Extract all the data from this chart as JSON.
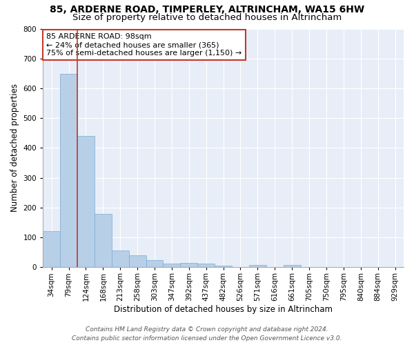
{
  "title_line1": "85, ARDERNE ROAD, TIMPERLEY, ALTRINCHAM, WA15 6HW",
  "title_line2": "Size of property relative to detached houses in Altrincham",
  "xlabel": "Distribution of detached houses by size in Altrincham",
  "ylabel": "Number of detached properties",
  "categories": [
    "34sqm",
    "79sqm",
    "124sqm",
    "168sqm",
    "213sqm",
    "258sqm",
    "303sqm",
    "347sqm",
    "392sqm",
    "437sqm",
    "482sqm",
    "526sqm",
    "571sqm",
    "616sqm",
    "661sqm",
    "705sqm",
    "750sqm",
    "795sqm",
    "840sqm",
    "884sqm",
    "929sqm"
  ],
  "values": [
    120,
    648,
    440,
    180,
    57,
    40,
    24,
    12,
    14,
    12,
    6,
    0,
    7,
    0,
    8,
    0,
    0,
    0,
    0,
    0,
    0
  ],
  "bar_color": "#b8cfe8",
  "bar_edge_color": "#7aaad0",
  "vline_color": "#c0392b",
  "annotation_text": "85 ARDERNE ROAD: 98sqm\n← 24% of detached houses are smaller (365)\n75% of semi-detached houses are larger (1,150) →",
  "annotation_box_color": "#ffffff",
  "annotation_box_edge": "#c0392b",
  "ylim": [
    0,
    800
  ],
  "yticks": [
    0,
    100,
    200,
    300,
    400,
    500,
    600,
    700,
    800
  ],
  "bg_color": "#e8eef8",
  "footer_line1": "Contains HM Land Registry data © Crown copyright and database right 2024.",
  "footer_line2": "Contains public sector information licensed under the Open Government Licence v3.0.",
  "title_fontsize": 10,
  "subtitle_fontsize": 9.5,
  "axis_label_fontsize": 8.5,
  "tick_fontsize": 7.5,
  "annotation_fontsize": 8,
  "footer_fontsize": 6.5
}
